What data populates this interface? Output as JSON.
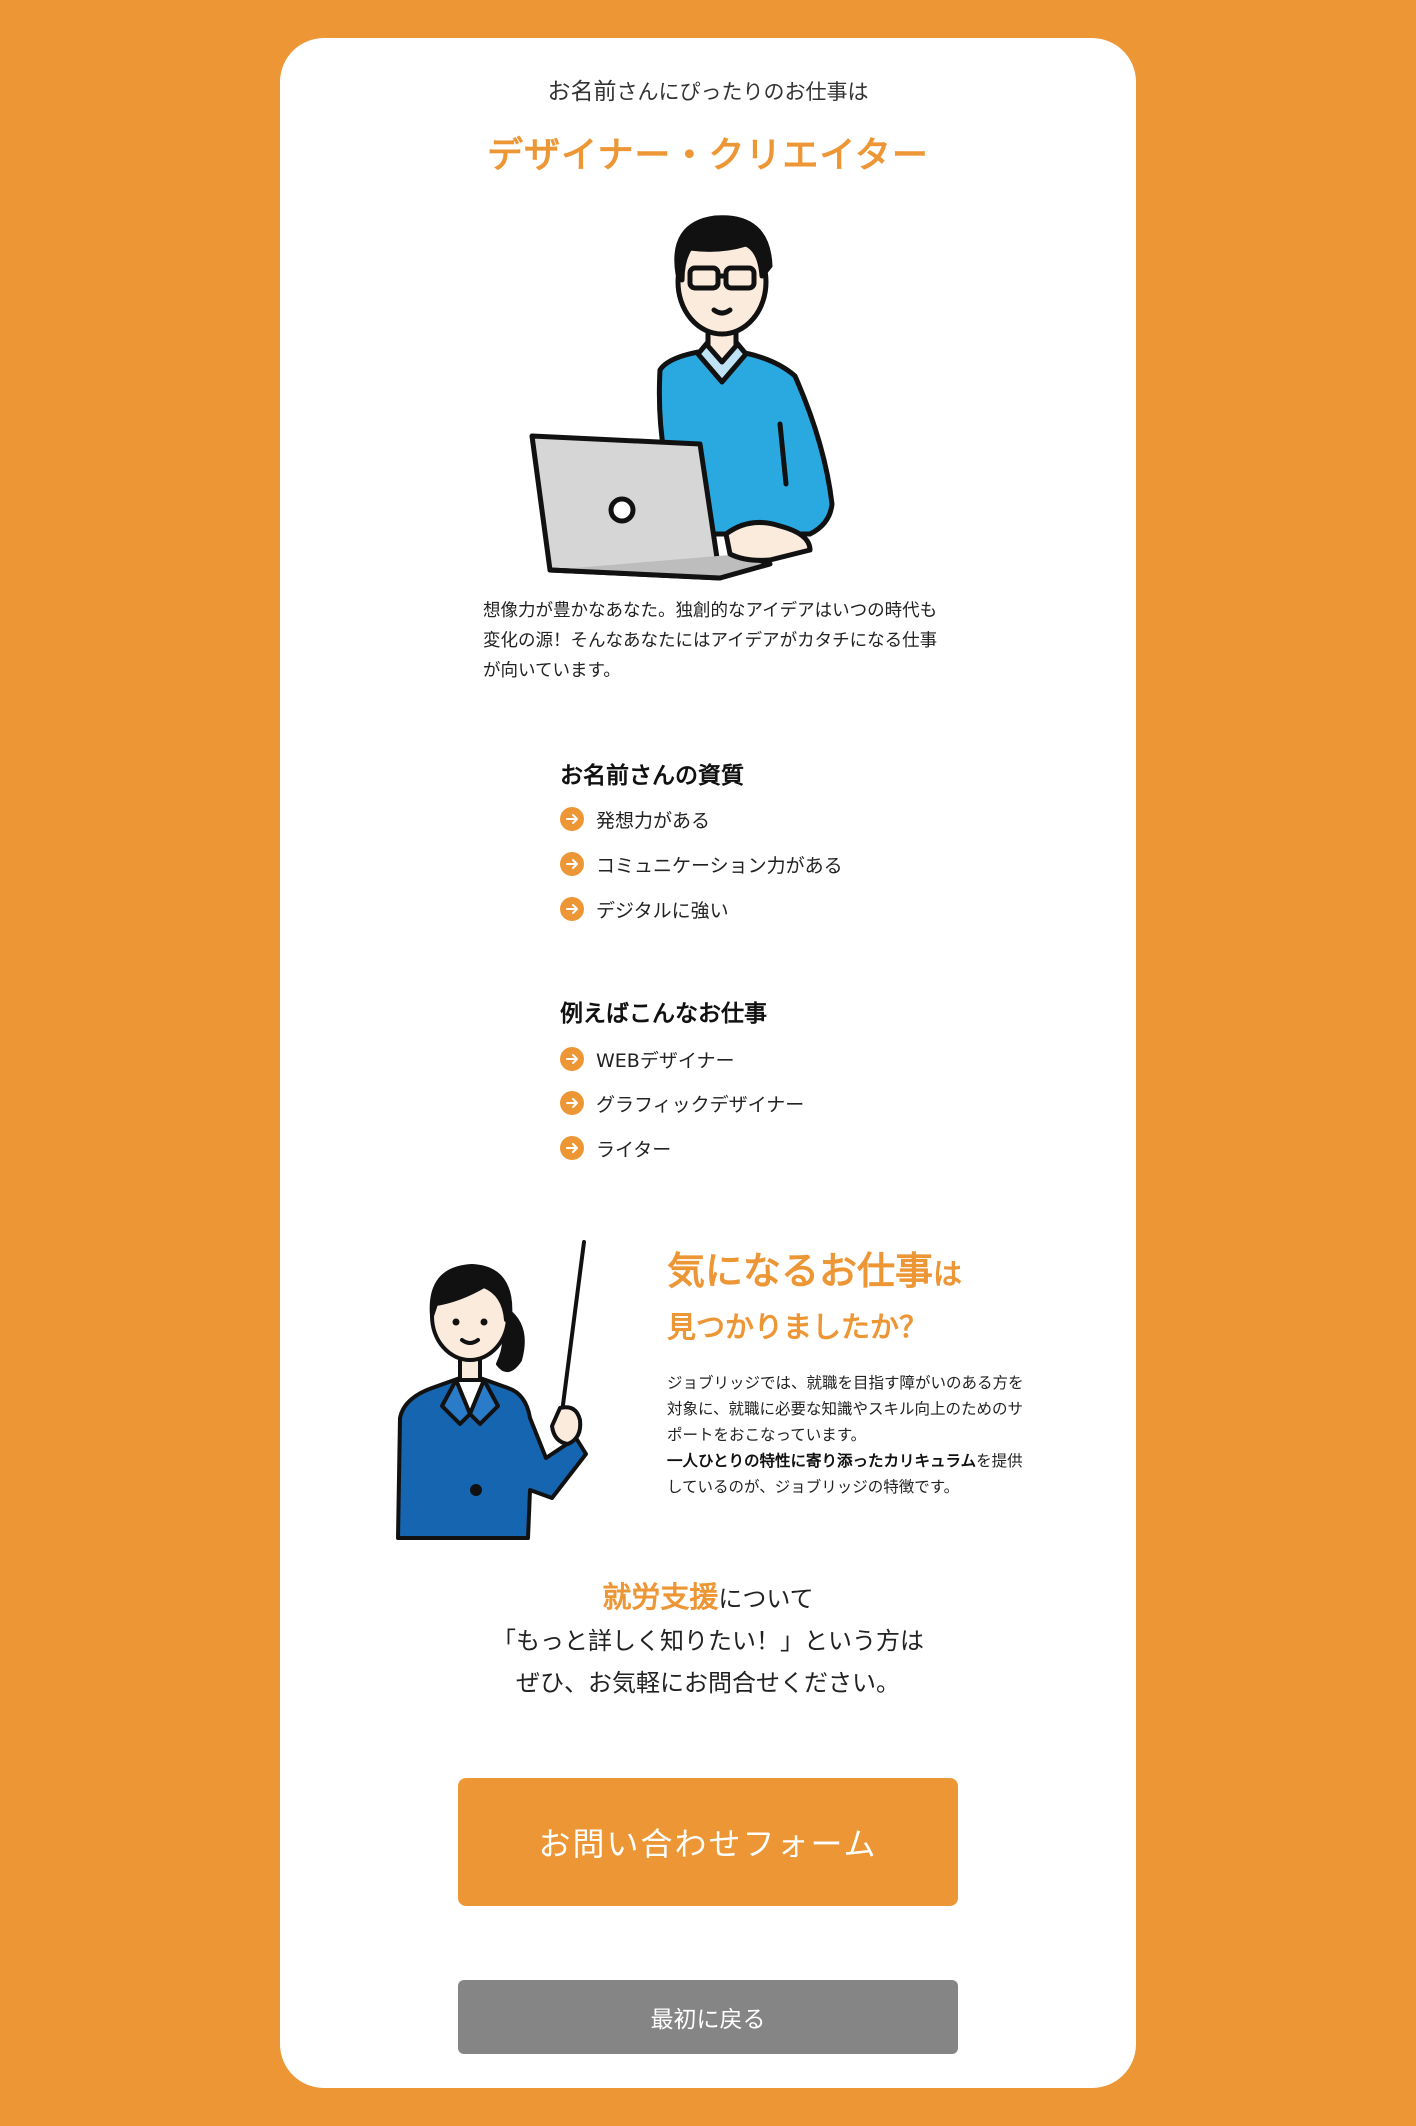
{
  "intro": {
    "name": "お名前",
    "suffix": "さんにぴったりのお仕事は"
  },
  "job_title": "デザイナー・クリエイター",
  "description": "想像力が豊かなあなた。独創的なアイデアはいつの時代も変化の源！そんなあなたにはアイデアがカタチになる仕事が向いています。",
  "traits": {
    "heading": "お名前さんの資質",
    "items": [
      "発想力がある",
      "コミュニケーション力がある",
      "デジタルに強い"
    ]
  },
  "examples": {
    "heading": "例えばこんなお仕事",
    "items": [
      "WEBデザイナー",
      "グラフィックデザイナー",
      "ライター"
    ]
  },
  "cta": {
    "heading_part1": "気になるお仕事",
    "heading_part2": "は",
    "heading_line2": "見つかりましたか？",
    "body_part1": "ジョブリッジでは、就職を目指す障がいのある方を対象に、就職に必要な知識やスキル向上のためのサポートをおこなっています。",
    "body_bold": "一人ひとりの特性に寄り添ったカリキュラム",
    "body_part2": "を提供しているのが、ジョブリッジの特徴です。"
  },
  "support": {
    "highlight": "就労支援",
    "line1_rest": "について",
    "line2": "「もっと詳しく知りたい！」という方は",
    "line3": "ぜひ、お気軽にお問合せください。"
  },
  "buttons": {
    "contact": "お問い合わせフォーム",
    "back": "最初に戻る"
  },
  "colors": {
    "accent": "#ED9635",
    "background": "#ED9635",
    "card": "#FFFFFF",
    "back_button": "#858585",
    "sweater": "#2AA9E1",
    "suit": "#1565B0"
  }
}
